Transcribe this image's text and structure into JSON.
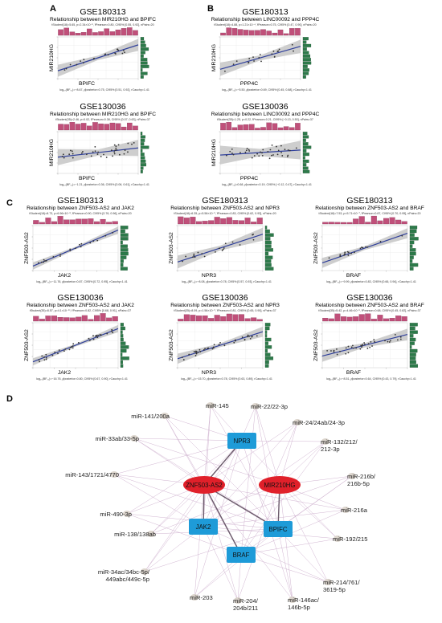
{
  "panels": {
    "A": "A",
    "B": "B",
    "C": "C",
    "D": "D"
  },
  "scatter_plots": [
    {
      "id": "A1",
      "dataset": "GSE180313",
      "title": "Relationship between MIR210HG and BPIFC",
      "stats_top": "tStudent(18)=5.65, p=2.34×10⁻⁵, r̂Pearson=0.80, CI95% [0.55, 0.92], nPairs=20",
      "stats_bottom": "log₁₀(BF₀₁)=−8.67, ρ̂posterior=0.75, CI95% [0.51, 0.92], rCauchy=1.41",
      "ylabel": "MIR210HG",
      "xlabel": "BPIFC",
      "slope": 0.62,
      "ci": 0.09,
      "seed": 11,
      "n": 20,
      "noise": 0.18
    },
    {
      "id": "B1",
      "dataset": "GSE180313",
      "title": "Relationship between LINC00092 and PPP4C",
      "stats_top": "tStudent(18)=4.88, p=1.21×10⁻⁴, r̂Pearson=0.75, CI95% [0.47, 0.90], nPairs=20",
      "stats_bottom": "log₁₀(BF₀₁)=−5.50, ρ̂posterior=0.69, CI95% [0.45, 0.88], rCauchy=1.41",
      "ylabel": "MIR210HG",
      "xlabel": "PPP4C",
      "slope": 0.55,
      "ci": 0.1,
      "seed": 23,
      "n": 20,
      "noise": 0.2
    },
    {
      "id": "A2",
      "dataset": "GSE130036",
      "title": "Relationship between MIR210HG and BPIFC",
      "stats_top": "tStudent(35)=2.46, p=0.02, r̂Pearson=0.38, CI95% [0.07, 0.63], nPairs=37",
      "stats_bottom": "log₁₀(BF₀₁)=−1.21, ρ̂posterior=0.36, CI95% [0.06, 0.61], rCauchy=1.41",
      "ylabel": "MIR210HG",
      "xlabel": "BPIFC",
      "slope": 0.22,
      "ci": 0.12,
      "seed": 37,
      "n": 37,
      "noise": 0.3
    },
    {
      "id": "B2",
      "dataset": "GSE130036",
      "title": "Relationship between LINC00092 and PPP4C",
      "stats_top": "tStudent(35)=1.25, p=0.22, r̂Pearson=0.21, CI95% [−0.13, 0.50], nPairs=37",
      "stats_bottom": "log₁₀(BF₀₁)=0.68, ρ̂posterior=0.19, CI95% [−0.12, 0.47], rCauchy=1.41",
      "ylabel": "MIR210HG",
      "xlabel": "PPP4C",
      "slope": 0.12,
      "ci": 0.14,
      "seed": 41,
      "n": 37,
      "noise": 0.32
    },
    {
      "id": "C1",
      "dataset": "GSE180313",
      "title": "Relationship between ZNF503-AS2 and JAK2",
      "stats_top": "tStudent(18)=8.73, p=6.96×10⁻⁸, r̂Pearson=0.90, CI95% [0.76, 0.96], nPairs=20",
      "stats_bottom": "log₁₀(BF₀₁)=−11.76, ρ̂posterior=0.87, CI95% [0.72, 0.95], rCauchy=1.41",
      "ylabel": "ZNF503-AS2",
      "xlabel": "JAK2",
      "slope": 0.8,
      "ci": 0.05,
      "seed": 53,
      "n": 20,
      "noise": 0.08
    },
    {
      "id": "C2",
      "dataset": "GSE180313",
      "title": "Relationship between ZNF503-AS2 and NPR3",
      "stats_top": "tStudent(18)=6.35, p=5.56×10⁻⁶, r̂Pearson=0.83, CI95% [0.62, 0.93], nPairs=20",
      "stats_bottom": "log₁₀(BF₀₁)=−8.08, ρ̂posterior=0.78, CI95% [0.57, 0.93], rCauchy=1.41",
      "ylabel": "ZNF503-AS2",
      "xlabel": "NPR3",
      "slope": 0.62,
      "ci": 0.09,
      "seed": 67,
      "n": 20,
      "noise": 0.15
    },
    {
      "id": "C3",
      "dataset": "GSE180313",
      "title": "Relationship between ZNF503-AS2 and BRAF",
      "stats_top": "tStudent(18)=7.53, p=5.71×10⁻⁷, r̂Pearson=0.87, CI95% [0.70, 0.95], nPairs=20",
      "stats_bottom": "log₁₀(BF₀₁)=−9.99, ρ̂posterior=0.83, CI95% [0.66, 0.94], rCauchy=1.41",
      "ylabel": "ZNF503-AS2",
      "xlabel": "BRAF",
      "slope": 0.66,
      "ci": 0.07,
      "seed": 71,
      "n": 20,
      "noise": 0.12
    },
    {
      "id": "C4",
      "dataset": "GSE130036",
      "title": "Relationship between ZNF503-AS2 and JAK2",
      "stats_top": "tStudent(35)=8.57, p=4.1×10⁻¹⁰, r̂Pearson=0.82, CI95% [0.68, 0.91], nPairs=37",
      "stats_bottom": "log₁₀(BF₀₁)=−16.76, ρ̂posterior=0.80, CI95% [0.67, 0.90], rCauchy=1.41",
      "ylabel": "ZNF503-AS2",
      "xlabel": "JAK2",
      "slope": 0.74,
      "ci": 0.05,
      "seed": 83,
      "n": 37,
      "noise": 0.12
    },
    {
      "id": "C5",
      "dataset": "GSE130036",
      "title": "Relationship between ZNF503-AS2 and NPR3",
      "stats_top": "tStudent(35)=8.09, p=1.56×10⁻⁹, r̂Pearson=0.81, CI95% [0.65, 0.90], nPairs=37",
      "stats_bottom": "log₁₀(BF₀₁)=−15.70, ρ̂posterior=0.78, CI95% [0.63, 0.89], rCauchy=1.41",
      "ylabel": "ZNF503-AS2",
      "xlabel": "NPR3",
      "slope": 0.6,
      "ci": 0.07,
      "seed": 97,
      "n": 37,
      "noise": 0.14
    },
    {
      "id": "C6",
      "dataset": "GSE130036",
      "title": "Relationship between ZNF503-AS2 and BRAF",
      "stats_top": "tStudent(35)=5.42, p=4.46×10⁻⁶, r̂Pearson=0.68, CI95% [0.45, 0.82], nPairs=37",
      "stats_bottom": "log₁₀(BF₀₁)=−8.51, ρ̂posterior=0.64, CI95% [0.43, 0.79], rCauchy=1.41",
      "ylabel": "ZNF503-AS2",
      "xlabel": "BRAF",
      "slope": 0.48,
      "ci": 0.08,
      "seed": 101,
      "n": 37,
      "noise": 0.18
    }
  ],
  "network": {
    "lncrnas": [
      "ZNF503-AS2",
      "MIR210HG"
    ],
    "mrnas": [
      "NPR3",
      "JAK2",
      "BPIFC",
      "BRAF"
    ],
    "mirnas": [
      {
        "label": "miR-145"
      },
      {
        "label": "miR-22/22-3p"
      },
      {
        "label": "miR-141/200a"
      },
      {
        "label": "miR-24/24ab/24-3p"
      },
      {
        "label": "miR-33ab/33-5p"
      },
      {
        "label": "miR-132/212/\n212-3p"
      },
      {
        "label": "miR-143/1721/4770"
      },
      {
        "label": "miR-216b/\n216b-5p"
      },
      {
        "label": "miR-490-3p"
      },
      {
        "label": "miR-216a"
      },
      {
        "label": "miR-138/138ab"
      },
      {
        "label": "miR-192/215"
      },
      {
        "label": "miR-34ac/34bc-5p/\n449abc/449c-5p"
      },
      {
        "label": "miR-214/761/\n3619-5p"
      },
      {
        "label": "miR-203"
      },
      {
        "label": "miR-204/\n204b/211"
      },
      {
        "label": "miR-146ac/\n146b-5p"
      }
    ],
    "colors": {
      "lncrna": "#e0202a",
      "mrna": "#1e9bd8",
      "mirna": "#d8d0c8",
      "edge": "#c9a8c9"
    }
  },
  "colors": {
    "bar": "#c0507a",
    "hist_right": "#2d7a4a",
    "line": "#2f3f9a",
    "band": "#bdbdbd",
    "point": "#333333"
  }
}
